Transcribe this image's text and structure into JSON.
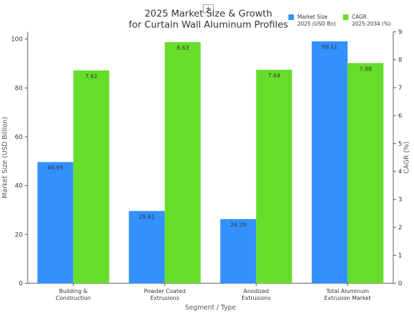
{
  "toolbar": {
    "zoom_label": "+"
  },
  "chart_data": {
    "type": "bar",
    "title_lines": [
      "2025 Market Size & Growth",
      "for Curtain Wall Aluminum Profiles"
    ],
    "xlabel": "Segment / Type",
    "ylabel_left": "Market Size (USD Billion)",
    "ylabel_right": "CAGR (%)",
    "categories": [
      [
        "Building &",
        "Construction"
      ],
      [
        "Powder Coated",
        "Extrusions"
      ],
      [
        "Anodized",
        "Extrusions"
      ],
      [
        "Total Aluminum",
        "Extrusion Market"
      ]
    ],
    "series": [
      {
        "name_lines": [
          "Market Size",
          "2025 (USD Bn)"
        ],
        "axis": "left",
        "color": "#3391ff",
        "values": [
          49.65,
          29.61,
          26.29,
          99.11
        ],
        "labels": [
          "49.65",
          "29.61",
          "26.29",
          "99.11"
        ]
      },
      {
        "name_lines": [
          "CAGR",
          "2025-2034 (%)"
        ],
        "axis": "right",
        "color": "#66dd2a",
        "values": [
          7.62,
          8.63,
          7.64,
          7.88
        ],
        "labels": [
          "7.62",
          "8.63",
          "7.64",
          "7.88"
        ]
      }
    ],
    "ylim_left": [
      0,
      103
    ],
    "yticks_left": [
      0,
      20,
      40,
      60,
      80,
      100
    ],
    "ylim_right": [
      0,
      9
    ],
    "yticks_right": [
      0,
      1,
      2,
      3,
      4,
      5,
      6,
      7,
      8,
      9
    ],
    "grid": false,
    "legend": "top-right"
  }
}
